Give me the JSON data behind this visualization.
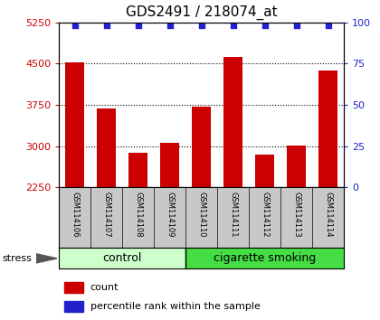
{
  "title": "GDS2491 / 218074_at",
  "samples": [
    "GSM114106",
    "GSM114107",
    "GSM114108",
    "GSM114109",
    "GSM114110",
    "GSM114111",
    "GSM114112",
    "GSM114113",
    "GSM114114"
  ],
  "counts": [
    4530,
    3680,
    2870,
    3060,
    3720,
    4620,
    2840,
    3010,
    4380
  ],
  "percentile_ranks": [
    100,
    100,
    100,
    100,
    100,
    100,
    100,
    100,
    100
  ],
  "groups": [
    "control",
    "control",
    "control",
    "control",
    "cigarette smoking",
    "cigarette smoking",
    "cigarette smoking",
    "cigarette smoking",
    "cigarette smoking"
  ],
  "n_control": 4,
  "n_smoking": 5,
  "group_colors": {
    "control": "#ccffcc",
    "cigarette smoking": "#44dd44"
  },
  "bar_color": "#cc0000",
  "dot_color": "#2222cc",
  "ylim": [
    2250,
    5250
  ],
  "yticks_left": [
    2250,
    3000,
    3750,
    4500,
    5250
  ],
  "yticks_right": [
    0,
    25,
    50,
    75,
    100
  ],
  "right_ylim": [
    0,
    100
  ],
  "bar_width": 0.6,
  "background_color": "#ffffff",
  "tick_label_color_left": "#cc0000",
  "tick_label_color_right": "#2222cc",
  "legend_items": [
    "count",
    "percentile rank within the sample"
  ],
  "stress_label": "stress",
  "title_fontsize": 11,
  "tick_fontsize": 8,
  "sample_fontsize": 6,
  "group_fontsize": 9
}
